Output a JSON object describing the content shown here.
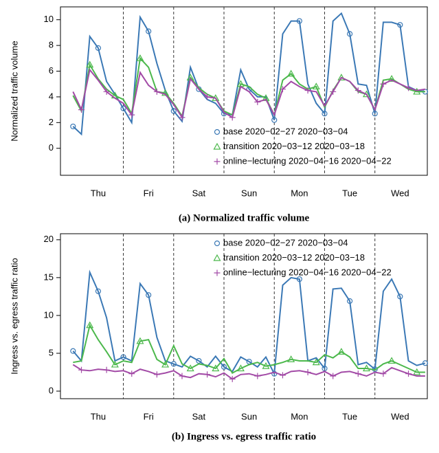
{
  "chart_data": [
    {
      "type": "line",
      "title": "(a) Normalized traffic volume",
      "y_label": "Normalized traffic volume",
      "x": [
        0,
        4,
        8,
        12,
        16,
        20,
        24,
        28,
        32,
        36,
        40,
        44,
        48,
        52,
        56,
        60,
        64,
        68,
        72,
        76,
        80,
        84,
        88,
        92,
        96,
        100,
        104,
        108,
        112,
        116,
        120,
        124,
        128,
        132,
        136,
        140,
        144,
        148,
        152,
        156,
        160,
        164,
        168
      ],
      "xlim": [
        -6,
        169
      ],
      "xticks": [
        {
          "value": 12,
          "label": "Thu"
        },
        {
          "value": 36,
          "label": "Fri"
        },
        {
          "value": 60,
          "label": "Sat"
        },
        {
          "value": 84,
          "label": "Sun"
        },
        {
          "value": 108,
          "label": "Mon"
        },
        {
          "value": 132,
          "label": "Tue"
        },
        {
          "value": 156,
          "label": "Wed"
        }
      ],
      "vlines": [
        24,
        48,
        72,
        96,
        120,
        144
      ],
      "ylim": [
        -2.1,
        11
      ],
      "yticks": [
        0,
        2,
        4,
        6,
        8,
        10
      ],
      "legend": "bottom-right",
      "series": [
        {
          "name": "base 2020−02−27 2020−03−04",
          "color": "#3a78b5",
          "marker": "circle",
          "values": [
            1.7,
            1.1,
            8.7,
            7.8,
            5.2,
            4.2,
            3.1,
            2.0,
            10.2,
            9.1,
            6.6,
            4.5,
            2.9,
            2.1,
            6.3,
            4.6,
            3.8,
            3.5,
            2.7,
            2.6,
            6.1,
            4.6,
            4.0,
            4.0,
            2.2,
            8.9,
            9.9,
            9.9,
            5.0,
            3.5,
            2.7,
            9.9,
            10.5,
            8.9,
            5.0,
            4.9,
            2.7,
            9.8,
            9.8,
            9.6,
            4.8,
            4.5,
            4.4
          ]
        },
        {
          "name": "transition 2020−03−12 2020−03−18",
          "color": "#4bb84b",
          "marker": "triangle",
          "values": [
            4.1,
            2.9,
            6.5,
            5.4,
            4.6,
            4.1,
            3.8,
            2.7,
            7.0,
            6.3,
            4.4,
            4.3,
            3.5,
            2.5,
            5.5,
            4.7,
            4.2,
            3.9,
            2.9,
            2.6,
            5.0,
            4.8,
            4.2,
            3.9,
            2.6,
            5.3,
            5.8,
            5.0,
            4.6,
            4.8,
            3.2,
            4.5,
            5.5,
            5.2,
            4.4,
            4.2,
            3.0,
            5.3,
            5.4,
            5.0,
            4.6,
            4.4,
            4.4
          ]
        },
        {
          "name": "online−lecturing 2020−04−16 2020−04−22",
          "color": "#a24aa6",
          "marker": "plus",
          "values": [
            4.4,
            3.0,
            6.1,
            5.3,
            4.4,
            3.9,
            3.5,
            2.6,
            5.9,
            4.9,
            4.4,
            4.2,
            3.4,
            2.4,
            5.4,
            4.6,
            4.0,
            3.9,
            2.8,
            2.4,
            4.8,
            4.4,
            3.6,
            3.8,
            2.6,
            4.6,
            5.2,
            4.8,
            4.5,
            4.4,
            3.3,
            4.4,
            5.5,
            5.2,
            4.5,
            4.2,
            3.0,
            5.0,
            5.3,
            5.0,
            4.7,
            4.5,
            4.6
          ]
        }
      ]
    },
    {
      "type": "line",
      "title": "(b) Ingress vs. egress traffic ratio",
      "y_label": "Ingress vs. egress traffic ratio",
      "x": [
        0,
        4,
        8,
        12,
        16,
        20,
        24,
        28,
        32,
        36,
        40,
        44,
        48,
        52,
        56,
        60,
        64,
        68,
        72,
        76,
        80,
        84,
        88,
        92,
        96,
        100,
        104,
        108,
        112,
        116,
        120,
        124,
        128,
        132,
        136,
        140,
        144,
        148,
        152,
        156,
        160,
        164,
        168
      ],
      "xlim": [
        -6,
        169
      ],
      "xticks": [
        {
          "value": 12,
          "label": "Thu"
        },
        {
          "value": 36,
          "label": "Fri"
        },
        {
          "value": 60,
          "label": "Sat"
        },
        {
          "value": 84,
          "label": "Sun"
        },
        {
          "value": 108,
          "label": "Mon"
        },
        {
          "value": 132,
          "label": "Tue"
        },
        {
          "value": 156,
          "label": "Wed"
        }
      ],
      "vlines": [
        24,
        48,
        72,
        96,
        120,
        144
      ],
      "ylim": [
        -1,
        20.8
      ],
      "yticks": [
        0,
        5,
        10,
        15,
        20
      ],
      "legend": "top-right",
      "series": [
        {
          "name": "base 2020−02−27 2020−03−04",
          "color": "#3a78b5",
          "marker": "circle",
          "values": [
            5.3,
            4.0,
            15.7,
            13.2,
            9.7,
            4.0,
            4.5,
            4.0,
            14.2,
            12.7,
            7.1,
            4.0,
            3.6,
            3.2,
            4.6,
            4.0,
            3.2,
            4.6,
            3.2,
            2.6,
            4.5,
            3.9,
            3.2,
            4.5,
            2.3,
            14.0,
            15.0,
            14.8,
            4.0,
            4.4,
            3.0,
            13.5,
            13.6,
            11.9,
            3.5,
            3.8,
            2.9,
            13.2,
            14.8,
            12.5,
            4.0,
            3.4,
            3.7
          ]
        },
        {
          "name": "transition 2020−03−12 2020−03−18",
          "color": "#4bb84b",
          "marker": "triangle",
          "values": [
            3.8,
            4.0,
            8.7,
            6.8,
            5.2,
            3.5,
            4.0,
            3.8,
            6.6,
            6.8,
            4.2,
            3.5,
            6.0,
            3.6,
            3.0,
            3.6,
            3.4,
            3.0,
            4.3,
            2.4,
            3.0,
            3.5,
            3.8,
            3.3,
            3.5,
            3.8,
            4.2,
            4.0,
            4.0,
            3.8,
            4.8,
            4.4,
            5.2,
            4.5,
            3.0,
            3.0,
            2.8,
            3.6,
            4.0,
            3.5,
            3.0,
            2.5,
            2.5
          ]
        },
        {
          "name": "online−lecturing 2020−04−16 2020−04−22",
          "color": "#a24aa6",
          "marker": "plus",
          "values": [
            3.5,
            2.8,
            2.7,
            2.9,
            2.8,
            2.6,
            2.7,
            2.3,
            2.9,
            2.6,
            2.2,
            2.4,
            2.7,
            2.0,
            1.8,
            2.3,
            2.2,
            1.9,
            2.4,
            1.6,
            2.2,
            2.3,
            2.0,
            2.2,
            2.5,
            2.1,
            2.6,
            2.7,
            2.5,
            2.2,
            2.6,
            2.0,
            2.5,
            2.6,
            2.3,
            2.0,
            2.5,
            2.3,
            3.1,
            2.7,
            2.3,
            2.0,
            2.0
          ]
        }
      ]
    }
  ]
}
